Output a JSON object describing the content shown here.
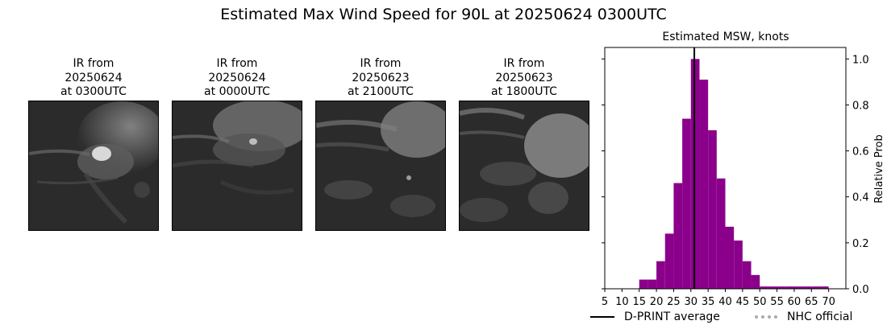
{
  "title": "Estimated Max Wind Speed for 90L at 20250624 0300UTC",
  "ir_panels": [
    {
      "line1": "IR from",
      "line2": "20250624",
      "line3": "at 0300UTC"
    },
    {
      "line1": "IR from",
      "line2": "20250624",
      "line3": "at 0000UTC"
    },
    {
      "line1": "IR from",
      "line2": "20250623",
      "line3": "at 2100UTC"
    },
    {
      "line1": "IR from",
      "line2": "20250623",
      "line3": "at 1800UTC"
    }
  ],
  "chart_data": {
    "type": "bar",
    "title": "Estimated MSW, knots",
    "xlabel": "",
    "ylabel": "Relative Prob",
    "xlim": [
      5,
      75
    ],
    "ylim": [
      0,
      1.05
    ],
    "xticks": [
      5,
      10,
      15,
      20,
      25,
      30,
      35,
      40,
      45,
      50,
      55,
      60,
      65,
      70
    ],
    "yticks": [
      0.0,
      0.2,
      0.4,
      0.6,
      0.8,
      1.0
    ],
    "ytick_labels": [
      "0.0",
      "0.2",
      "0.4",
      "0.6",
      "0.8",
      "1.0"
    ],
    "bar_color": "#8b008b",
    "bin_width": 2.5,
    "bins": [
      {
        "x0": 15.0,
        "value": 0.04
      },
      {
        "x0": 17.5,
        "value": 0.04
      },
      {
        "x0": 20.0,
        "value": 0.12
      },
      {
        "x0": 22.5,
        "value": 0.24
      },
      {
        "x0": 25.0,
        "value": 0.46
      },
      {
        "x0": 27.5,
        "value": 0.74
      },
      {
        "x0": 30.0,
        "value": 1.0
      },
      {
        "x0": 32.5,
        "value": 0.91
      },
      {
        "x0": 35.0,
        "value": 0.69
      },
      {
        "x0": 37.5,
        "value": 0.48
      },
      {
        "x0": 40.0,
        "value": 0.27
      },
      {
        "x0": 42.5,
        "value": 0.21
      },
      {
        "x0": 45.0,
        "value": 0.12
      },
      {
        "x0": 47.5,
        "value": 0.06
      },
      {
        "x0": 50.0,
        "value": 0.01
      },
      {
        "x0": 52.5,
        "value": 0.01
      },
      {
        "x0": 55.0,
        "value": 0.01
      },
      {
        "x0": 57.5,
        "value": 0.01
      },
      {
        "x0": 60.0,
        "value": 0.01
      },
      {
        "x0": 62.5,
        "value": 0.01
      },
      {
        "x0": 65.0,
        "value": 0.01
      },
      {
        "x0": 67.5,
        "value": 0.01
      }
    ],
    "dprint_average": 31,
    "legend": [
      {
        "label": "D-PRINT average",
        "color": "#000000",
        "style": "solid"
      },
      {
        "label": "NHC official",
        "color": "#aaaaaa",
        "style": "dotted"
      }
    ]
  }
}
